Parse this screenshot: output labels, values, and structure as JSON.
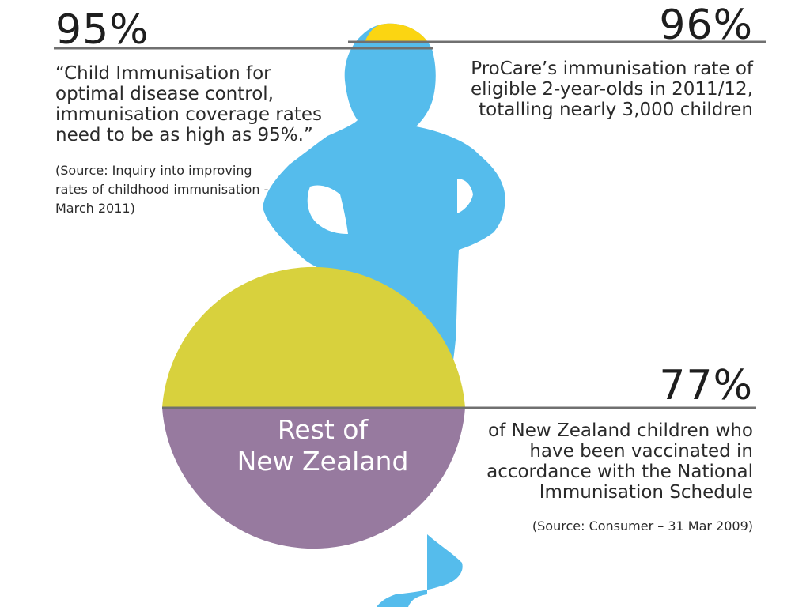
{
  "colors": {
    "figure": "#55bcec",
    "figure_fill": "#fbd512",
    "circle_fill": "#d8d13d",
    "circle": "#977a9f",
    "rule": "#707070"
  },
  "chart_data": {
    "type": "infographic",
    "stats": [
      {
        "value": 95,
        "label": "95%",
        "text": [
          "“Child Immunisation for",
          "optimal disease control,",
          "immunisation coverage rates",
          "need to be as high as 95%.”"
        ],
        "source": [
          "(Source: Inquiry into improving",
          "rates of childhood immunisation -",
          "March 2011)"
        ]
      },
      {
        "value": 96,
        "label": "96%",
        "text": [
          "ProCare’s immunisation rate of",
          "eligible 2-year-olds in 2011/12,",
          "totalling nearly 3,000 children"
        ]
      },
      {
        "value": 77,
        "label": "77%",
        "text": [
          "of New Zealand children who",
          "have been vaccinated in",
          "accordance with the National",
          "Immunisation Schedule"
        ],
        "source": [
          "(Source: Consumer – 31 Mar 2009)"
        ]
      }
    ],
    "circle_label": [
      "Rest of",
      "New Zealand"
    ]
  }
}
